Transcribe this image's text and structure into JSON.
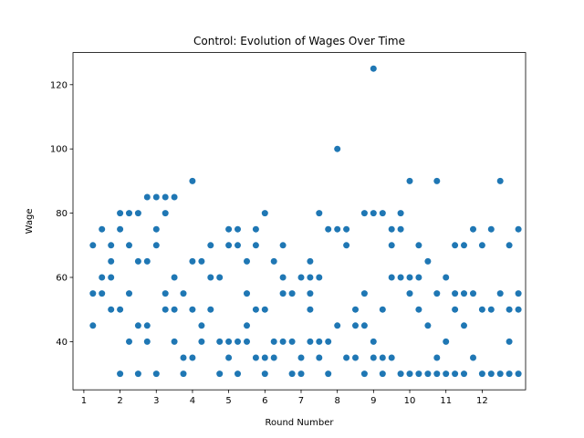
{
  "chart_data": {
    "type": "scatter",
    "title": "Control: Evolution of Wages Over Time",
    "xlabel": "Round Number",
    "ylabel": "Wage",
    "xlim": [
      0.7,
      13.2
    ],
    "ylim": [
      25,
      130
    ],
    "xticks": [
      1,
      2,
      3,
      4,
      5,
      6,
      7,
      8,
      9,
      10,
      11,
      12
    ],
    "yticks": [
      40,
      60,
      80,
      100,
      120
    ],
    "marker_color": "#1f77b4",
    "grid": false,
    "legend": "none",
    "series": [
      {
        "points": [
          {
            "x": 1.25,
            "y": 70
          },
          {
            "x": 1.25,
            "y": 55
          },
          {
            "x": 1.25,
            "y": 45
          },
          {
            "x": 1.5,
            "y": 75
          },
          {
            "x": 1.5,
            "y": 60
          },
          {
            "x": 1.5,
            "y": 55
          },
          {
            "x": 1.75,
            "y": 70
          },
          {
            "x": 1.75,
            "y": 65
          },
          {
            "x": 1.75,
            "y": 60
          },
          {
            "x": 1.75,
            "y": 50
          },
          {
            "x": 2.0,
            "y": 80
          },
          {
            "x": 2.0,
            "y": 75
          },
          {
            "x": 2.0,
            "y": 50
          },
          {
            "x": 2.0,
            "y": 30
          },
          {
            "x": 2.25,
            "y": 80
          },
          {
            "x": 2.25,
            "y": 70
          },
          {
            "x": 2.25,
            "y": 55
          },
          {
            "x": 2.25,
            "y": 40
          },
          {
            "x": 2.5,
            "y": 80
          },
          {
            "x": 2.5,
            "y": 65
          },
          {
            "x": 2.5,
            "y": 45
          },
          {
            "x": 2.5,
            "y": 30
          },
          {
            "x": 2.75,
            "y": 85
          },
          {
            "x": 2.75,
            "y": 65
          },
          {
            "x": 2.75,
            "y": 45
          },
          {
            "x": 2.75,
            "y": 40
          },
          {
            "x": 3.0,
            "y": 85
          },
          {
            "x": 3.0,
            "y": 75
          },
          {
            "x": 3.0,
            "y": 70
          },
          {
            "x": 3.0,
            "y": 30
          },
          {
            "x": 3.25,
            "y": 85
          },
          {
            "x": 3.25,
            "y": 80
          },
          {
            "x": 3.25,
            "y": 55
          },
          {
            "x": 3.25,
            "y": 50
          },
          {
            "x": 3.5,
            "y": 85
          },
          {
            "x": 3.5,
            "y": 60
          },
          {
            "x": 3.5,
            "y": 50
          },
          {
            "x": 3.5,
            "y": 40
          },
          {
            "x": 3.75,
            "y": 55
          },
          {
            "x": 3.75,
            "y": 35
          },
          {
            "x": 3.75,
            "y": 30
          },
          {
            "x": 4.0,
            "y": 90
          },
          {
            "x": 4.0,
            "y": 65
          },
          {
            "x": 4.0,
            "y": 50
          },
          {
            "x": 4.0,
            "y": 35
          },
          {
            "x": 4.25,
            "y": 65
          },
          {
            "x": 4.25,
            "y": 45
          },
          {
            "x": 4.25,
            "y": 40
          },
          {
            "x": 4.5,
            "y": 70
          },
          {
            "x": 4.5,
            "y": 60
          },
          {
            "x": 4.5,
            "y": 50
          },
          {
            "x": 4.75,
            "y": 60
          },
          {
            "x": 4.75,
            "y": 40
          },
          {
            "x": 4.75,
            "y": 30
          },
          {
            "x": 5.0,
            "y": 75
          },
          {
            "x": 5.0,
            "y": 70
          },
          {
            "x": 5.0,
            "y": 40
          },
          {
            "x": 5.0,
            "y": 35
          },
          {
            "x": 5.25,
            "y": 75
          },
          {
            "x": 5.25,
            "y": 70
          },
          {
            "x": 5.25,
            "y": 40
          },
          {
            "x": 5.25,
            "y": 30
          },
          {
            "x": 5.5,
            "y": 65
          },
          {
            "x": 5.5,
            "y": 55
          },
          {
            "x": 5.5,
            "y": 45
          },
          {
            "x": 5.5,
            "y": 40
          },
          {
            "x": 5.75,
            "y": 75
          },
          {
            "x": 5.75,
            "y": 70
          },
          {
            "x": 5.75,
            "y": 50
          },
          {
            "x": 5.75,
            "y": 35
          },
          {
            "x": 6.0,
            "y": 80
          },
          {
            "x": 6.0,
            "y": 50
          },
          {
            "x": 6.0,
            "y": 35
          },
          {
            "x": 6.0,
            "y": 30
          },
          {
            "x": 6.25,
            "y": 65
          },
          {
            "x": 6.25,
            "y": 40
          },
          {
            "x": 6.25,
            "y": 35
          },
          {
            "x": 6.5,
            "y": 70
          },
          {
            "x": 6.5,
            "y": 60
          },
          {
            "x": 6.5,
            "y": 55
          },
          {
            "x": 6.5,
            "y": 40
          },
          {
            "x": 6.75,
            "y": 55
          },
          {
            "x": 6.75,
            "y": 40
          },
          {
            "x": 6.75,
            "y": 30
          },
          {
            "x": 7.0,
            "y": 60
          },
          {
            "x": 7.0,
            "y": 35
          },
          {
            "x": 7.0,
            "y": 30
          },
          {
            "x": 7.25,
            "y": 65
          },
          {
            "x": 7.25,
            "y": 60
          },
          {
            "x": 7.25,
            "y": 55
          },
          {
            "x": 7.25,
            "y": 50
          },
          {
            "x": 7.25,
            "y": 40
          },
          {
            "x": 7.5,
            "y": 80
          },
          {
            "x": 7.5,
            "y": 60
          },
          {
            "x": 7.5,
            "y": 40
          },
          {
            "x": 7.5,
            "y": 35
          },
          {
            "x": 7.75,
            "y": 75
          },
          {
            "x": 7.75,
            "y": 40
          },
          {
            "x": 7.75,
            "y": 30
          },
          {
            "x": 8.0,
            "y": 100
          },
          {
            "x": 8.0,
            "y": 75
          },
          {
            "x": 8.0,
            "y": 45
          },
          {
            "x": 8.25,
            "y": 75
          },
          {
            "x": 8.25,
            "y": 70
          },
          {
            "x": 8.25,
            "y": 35
          },
          {
            "x": 8.5,
            "y": 50
          },
          {
            "x": 8.5,
            "y": 45
          },
          {
            "x": 8.5,
            "y": 35
          },
          {
            "x": 8.75,
            "y": 80
          },
          {
            "x": 8.75,
            "y": 55
          },
          {
            "x": 8.75,
            "y": 45
          },
          {
            "x": 8.75,
            "y": 30
          },
          {
            "x": 9.0,
            "y": 125
          },
          {
            "x": 9.0,
            "y": 80
          },
          {
            "x": 9.0,
            "y": 40
          },
          {
            "x": 9.0,
            "y": 35
          },
          {
            "x": 9.25,
            "y": 80
          },
          {
            "x": 9.25,
            "y": 50
          },
          {
            "x": 9.25,
            "y": 35
          },
          {
            "x": 9.25,
            "y": 30
          },
          {
            "x": 9.5,
            "y": 75
          },
          {
            "x": 9.5,
            "y": 70
          },
          {
            "x": 9.5,
            "y": 60
          },
          {
            "x": 9.5,
            "y": 35
          },
          {
            "x": 9.75,
            "y": 80
          },
          {
            "x": 9.75,
            "y": 75
          },
          {
            "x": 9.75,
            "y": 60
          },
          {
            "x": 9.75,
            "y": 30
          },
          {
            "x": 10.0,
            "y": 90
          },
          {
            "x": 10.0,
            "y": 60
          },
          {
            "x": 10.0,
            "y": 55
          },
          {
            "x": 10.0,
            "y": 30
          },
          {
            "x": 10.25,
            "y": 70
          },
          {
            "x": 10.25,
            "y": 60
          },
          {
            "x": 10.25,
            "y": 50
          },
          {
            "x": 10.25,
            "y": 30
          },
          {
            "x": 10.5,
            "y": 65
          },
          {
            "x": 10.5,
            "y": 45
          },
          {
            "x": 10.5,
            "y": 30
          },
          {
            "x": 10.75,
            "y": 90
          },
          {
            "x": 10.75,
            "y": 55
          },
          {
            "x": 10.75,
            "y": 35
          },
          {
            "x": 10.75,
            "y": 30
          },
          {
            "x": 11.0,
            "y": 60
          },
          {
            "x": 11.0,
            "y": 40
          },
          {
            "x": 11.0,
            "y": 30
          },
          {
            "x": 11.25,
            "y": 70
          },
          {
            "x": 11.25,
            "y": 55
          },
          {
            "x": 11.25,
            "y": 50
          },
          {
            "x": 11.25,
            "y": 30
          },
          {
            "x": 11.5,
            "y": 70
          },
          {
            "x": 11.5,
            "y": 55
          },
          {
            "x": 11.5,
            "y": 45
          },
          {
            "x": 11.5,
            "y": 30
          },
          {
            "x": 11.75,
            "y": 75
          },
          {
            "x": 11.75,
            "y": 55
          },
          {
            "x": 11.75,
            "y": 35
          },
          {
            "x": 12.0,
            "y": 70
          },
          {
            "x": 12.0,
            "y": 50
          },
          {
            "x": 12.0,
            "y": 30
          },
          {
            "x": 12.25,
            "y": 75
          },
          {
            "x": 12.25,
            "y": 50
          },
          {
            "x": 12.25,
            "y": 30
          },
          {
            "x": 12.5,
            "y": 90
          },
          {
            "x": 12.5,
            "y": 55
          },
          {
            "x": 12.5,
            "y": 30
          },
          {
            "x": 12.75,
            "y": 70
          },
          {
            "x": 12.75,
            "y": 50
          },
          {
            "x": 12.75,
            "y": 40
          },
          {
            "x": 12.75,
            "y": 30
          },
          {
            "x": 13.0,
            "y": 75
          },
          {
            "x": 13.0,
            "y": 55
          },
          {
            "x": 13.0,
            "y": 50
          },
          {
            "x": 13.0,
            "y": 30
          }
        ]
      }
    ]
  }
}
